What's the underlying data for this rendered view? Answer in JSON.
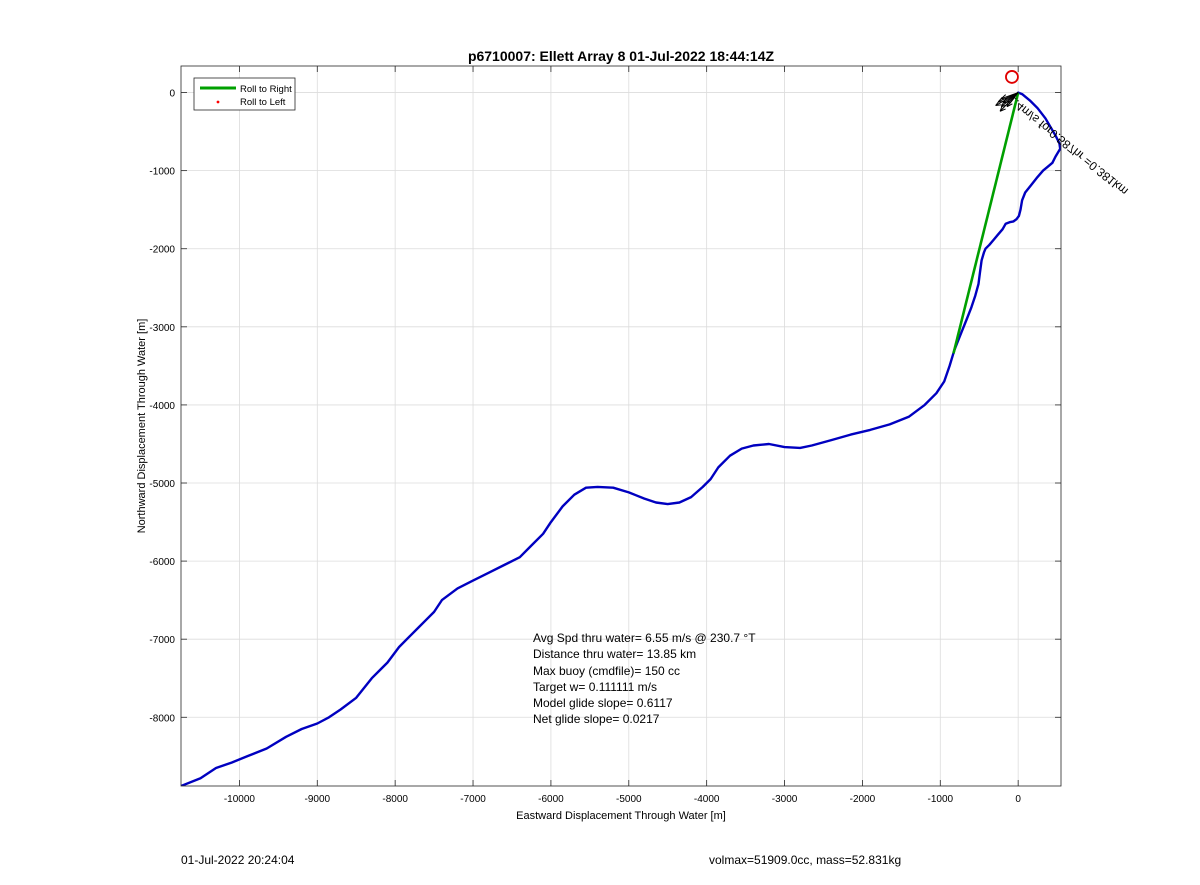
{
  "chart_data": {
    "type": "line",
    "title": "p6710007: Ellett Array 8 01-Jul-2022 18:44:14Z",
    "xlabel": "Eastward Displacement Through Water [m]",
    "ylabel": "Northward Displacement Through Water [m]",
    "xlim": [
      -10750,
      550
    ],
    "ylim": [
      -8880,
      340
    ],
    "xticks": [
      -10000,
      -9000,
      -8000,
      -7000,
      -6000,
      -5000,
      -4000,
      -3000,
      -2000,
      -1000,
      0
    ],
    "yticks": [
      0,
      -1000,
      -2000,
      -3000,
      -4000,
      -5000,
      -6000,
      -7000,
      -8000
    ],
    "grid": true,
    "legend_position": "top-left",
    "legend": [
      "Roll to Right",
      "Roll to Left"
    ],
    "colors": {
      "track": "#0000c0",
      "roll_right": "#00a000",
      "roll_left": "#ff0000",
      "marker": "#e00000"
    },
    "series": [
      {
        "name": "Roll to Left",
        "x": [
          0,
          50,
          150,
          250,
          350,
          420,
          480,
          530,
          540,
          480,
          440,
          380,
          320,
          250,
          170,
          90,
          50,
          30,
          10,
          -20,
          -60,
          -110,
          -160,
          -200,
          -260,
          -310,
          -370,
          -420,
          -440,
          -470,
          -490,
          -510,
          -550,
          -600,
          -660,
          -720,
          -780,
          -820,
          -880,
          -950,
          -1050,
          -1200,
          -1400,
          -1650,
          -1900,
          -2150,
          -2400,
          -2650,
          -2800,
          -3000,
          -3200,
          -3400,
          -3550,
          -3700,
          -3850,
          -3950,
          -4050,
          -4200,
          -4350,
          -4500,
          -4650,
          -4800,
          -5000,
          -5200,
          -5400,
          -5550,
          -5700,
          -5850,
          -6000,
          -6100,
          -6250,
          -6400,
          -6600,
          -6800,
          -7000,
          -7200,
          -7400,
          -7500,
          -7600,
          -7700,
          -7800,
          -7950,
          -8100,
          -8300,
          -8500,
          -8700,
          -8850,
          -9000,
          -9200,
          -9400,
          -9650,
          -9900,
          -10100,
          -10300,
          -10500,
          -10750
        ],
        "y": [
          0,
          -20,
          -100,
          -200,
          -330,
          -450,
          -550,
          -650,
          -720,
          -820,
          -900,
          -950,
          -1000,
          -1080,
          -1180,
          -1280,
          -1380,
          -1500,
          -1580,
          -1620,
          -1650,
          -1660,
          -1680,
          -1750,
          -1820,
          -1880,
          -1950,
          -2000,
          -2050,
          -2150,
          -2300,
          -2450,
          -2600,
          -2750,
          -2900,
          -3050,
          -3200,
          -3300,
          -3500,
          -3700,
          -3850,
          -4000,
          -4150,
          -4250,
          -4320,
          -4380,
          -4450,
          -4520,
          -4550,
          -4540,
          -4500,
          -4520,
          -4560,
          -4650,
          -4800,
          -4950,
          -5050,
          -5180,
          -5250,
          -5270,
          -5250,
          -5200,
          -5120,
          -5060,
          -5050,
          -5060,
          -5150,
          -5300,
          -5500,
          -5650,
          -5800,
          -5950,
          -6050,
          -6150,
          -6250,
          -6350,
          -6500,
          -6650,
          -6750,
          -6850,
          -6950,
          -7100,
          -7300,
          -7500,
          -7750,
          -7900,
          -8000,
          -8080,
          -8150,
          -8250,
          -8400,
          -8500,
          -8580,
          -8650,
          -8780,
          -8880
        ]
      },
      {
        "name": "Roll to Right",
        "x": [
          0,
          -830
        ],
        "y": [
          0,
          -3340
        ]
      }
    ],
    "marker_circle": {
      "x": -80,
      "y": 200
    },
    "annotation": "1.4m/s for0.587hr =0.381km",
    "stats": [
      "Avg Spd thru water=  6.55 m/s @ 230.7 °T",
      "Distance thru water= 13.85 km",
      "Max buoy (cmdfile)= 150 cc",
      "Target w= 0.111111 m/s",
      "Model glide slope= 0.6117",
      "Net glide slope= 0.0217"
    ]
  },
  "footer": {
    "left": "01-Jul-2022 20:24:04",
    "right": "volmax=51909.0cc, mass=52.831kg"
  }
}
